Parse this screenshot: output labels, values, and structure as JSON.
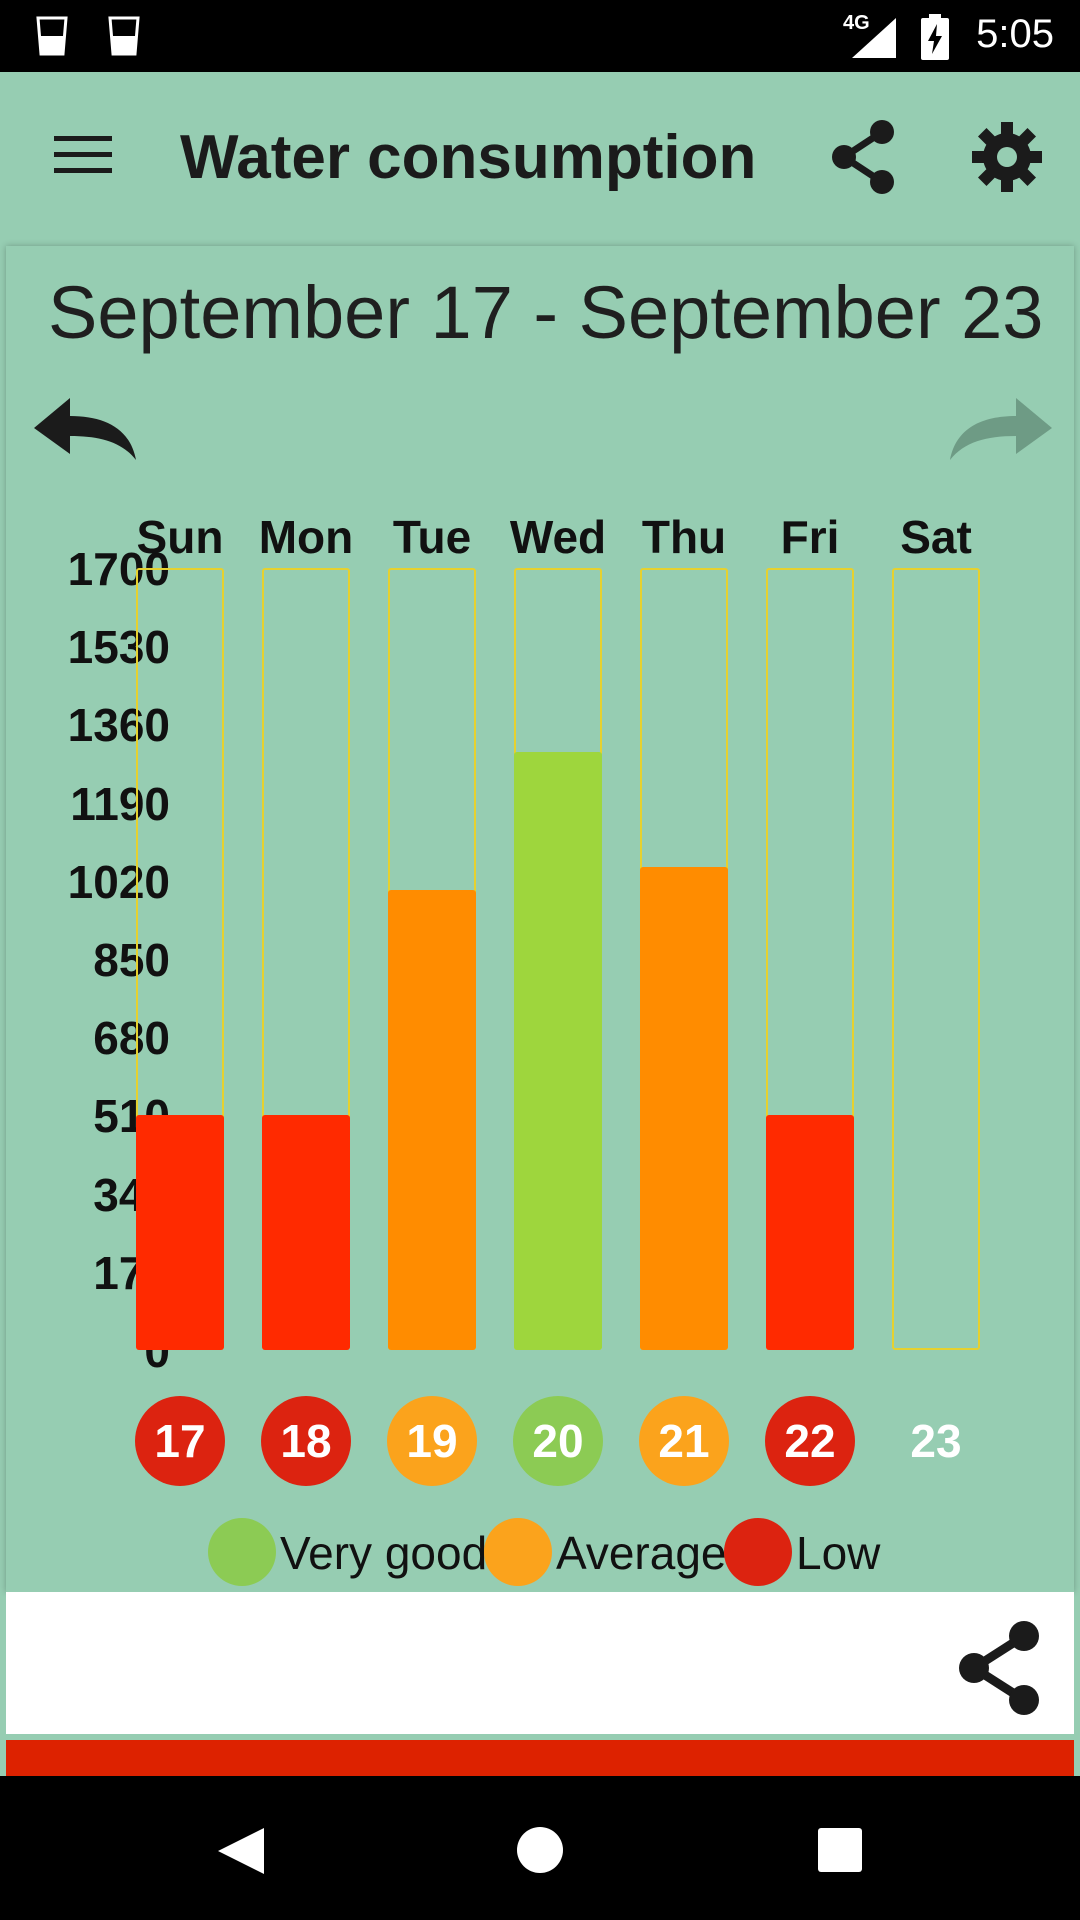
{
  "status_bar": {
    "time": "5:05",
    "network": "4G"
  },
  "app_bar": {
    "title": "Water consumption",
    "menu_icon": "menu-icon",
    "share_icon": "share-icon",
    "settings_icon": "gear-icon"
  },
  "week": {
    "range": "September 17 - September 23"
  },
  "chart_data": {
    "type": "bar",
    "categories": [
      "Sun",
      "Mon",
      "Tue",
      "Wed",
      "Thu",
      "Fri",
      "Sat"
    ],
    "values": [
      510,
      510,
      1000,
      1300,
      1050,
      510,
      0
    ],
    "ylim": [
      0,
      1700
    ],
    "yticks": [
      "1700",
      "1530",
      "1360",
      "1190",
      "1020",
      "850",
      "680",
      "510",
      "340",
      "170",
      "0"
    ],
    "dates": [
      "17",
      "18",
      "19",
      "20",
      "21",
      "22",
      "23"
    ],
    "ratings": [
      "Low",
      "Low",
      "Average",
      "Very good",
      "Average",
      "Low",
      ""
    ],
    "legend": [
      "Very good",
      "Average",
      "Low"
    ],
    "colors": {
      "very_good": "#9ED63D",
      "average": "#FF8C00",
      "low": "#FF2A00",
      "circle_very_good": "#8CCB54",
      "circle_average": "#FBA31C",
      "circle_low": "#DC2310",
      "track": "#E6D12F"
    }
  }
}
